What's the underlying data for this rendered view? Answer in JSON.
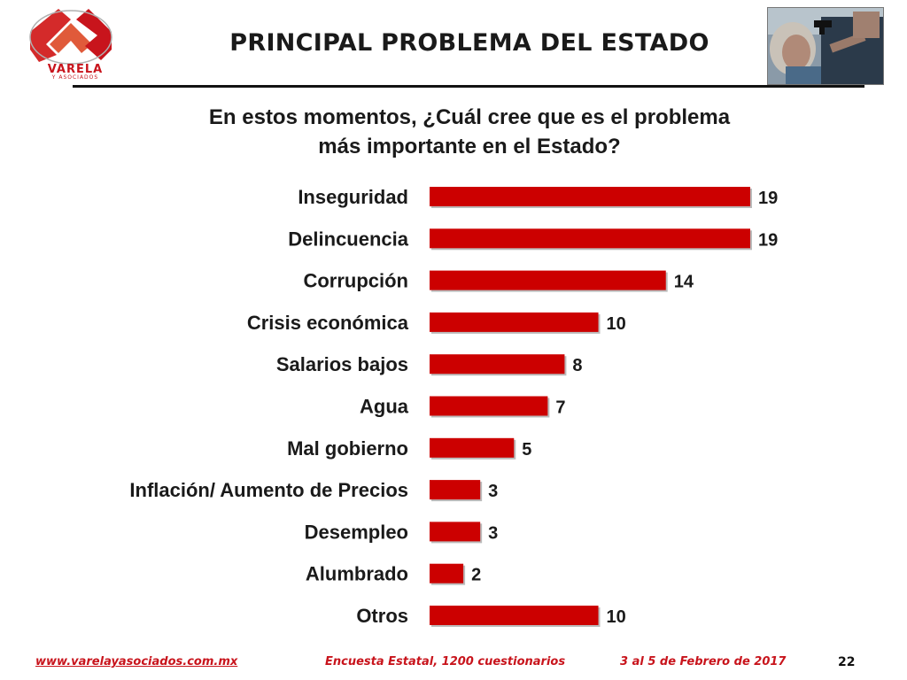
{
  "header": {
    "title": "PRINCIPAL PROBLEMA DEL ESTADO",
    "logo_text": "VARELA",
    "logo_subtext": "Y ASOCIADOS"
  },
  "question": {
    "line1": "En estos momentos, ¿Cuál cree que es el problema",
    "line2": "más importante en el Estado?"
  },
  "chart_data": {
    "type": "bar",
    "orientation": "horizontal",
    "categories": [
      "Inseguridad",
      "Delincuencia",
      "Corrupción",
      "Crisis económica",
      "Salarios bajos",
      "Agua",
      "Mal gobierno",
      "Inflación/ Aumento de Precios",
      "Desempleo",
      "Alumbrado",
      "Otros"
    ],
    "values": [
      19,
      19,
      14,
      10,
      8,
      7,
      5,
      3,
      3,
      2,
      10
    ],
    "bar_color": "#cc0000",
    "xlim": [
      0,
      19
    ],
    "grid": false,
    "legend": "none",
    "data_labels": true
  },
  "footer": {
    "url": "www.varelayasociados.com.mx",
    "survey": "Encuesta Estatal, 1200 cuestionarios",
    "date": "3 al 5 de Febrero de 2017",
    "page": "22"
  },
  "colors": {
    "brand_red": "#c8141c",
    "bar": "#cc0000",
    "text": "#1a1a1a"
  }
}
